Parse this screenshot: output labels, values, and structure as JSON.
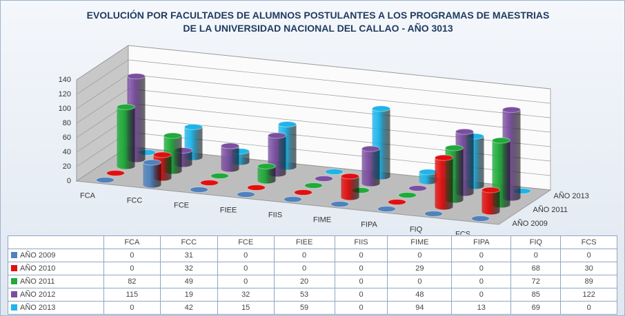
{
  "chart_data": {
    "type": "bar3d",
    "title": "EVOLUCIÓN POR FACULTADES DE ALUMNOS POSTULANTES A LOS PROGRAMAS DE MAESTRIAS DE LA UNIVERSIDAD NACIONAL DEL CALLAO - AÑO 3013",
    "categories": [
      "FCA",
      "FCC",
      "FCE",
      "FIEE",
      "FIIS",
      "FIME",
      "FIPA",
      "FIQ",
      "FCS"
    ],
    "series": [
      {
        "name": "AÑO 2009",
        "color": "#4f81bd",
        "values": [
          0,
          31,
          0,
          0,
          0,
          0,
          0,
          0,
          0
        ]
      },
      {
        "name": "AÑO 2010",
        "color": "#e01010",
        "values": [
          0,
          32,
          0,
          0,
          0,
          29,
          0,
          68,
          30
        ]
      },
      {
        "name": "AÑO 2011",
        "color": "#1faa3a",
        "values": [
          82,
          49,
          0,
          20,
          0,
          0,
          0,
          72,
          89
        ]
      },
      {
        "name": "AÑO 2012",
        "color": "#7a4fa0",
        "values": [
          115,
          19,
          32,
          53,
          0,
          48,
          0,
          85,
          122
        ]
      },
      {
        "name": "AÑO 2013",
        "color": "#1fb4e8",
        "values": [
          0,
          42,
          15,
          59,
          0,
          94,
          13,
          69,
          0
        ]
      }
    ],
    "depth_labels": [
      0,
      2,
      4
    ],
    "ylim": [
      0,
      140
    ],
    "yticks": [
      0,
      20,
      40,
      60,
      80,
      100,
      120,
      140
    ],
    "grid": true,
    "data_table": true
  }
}
